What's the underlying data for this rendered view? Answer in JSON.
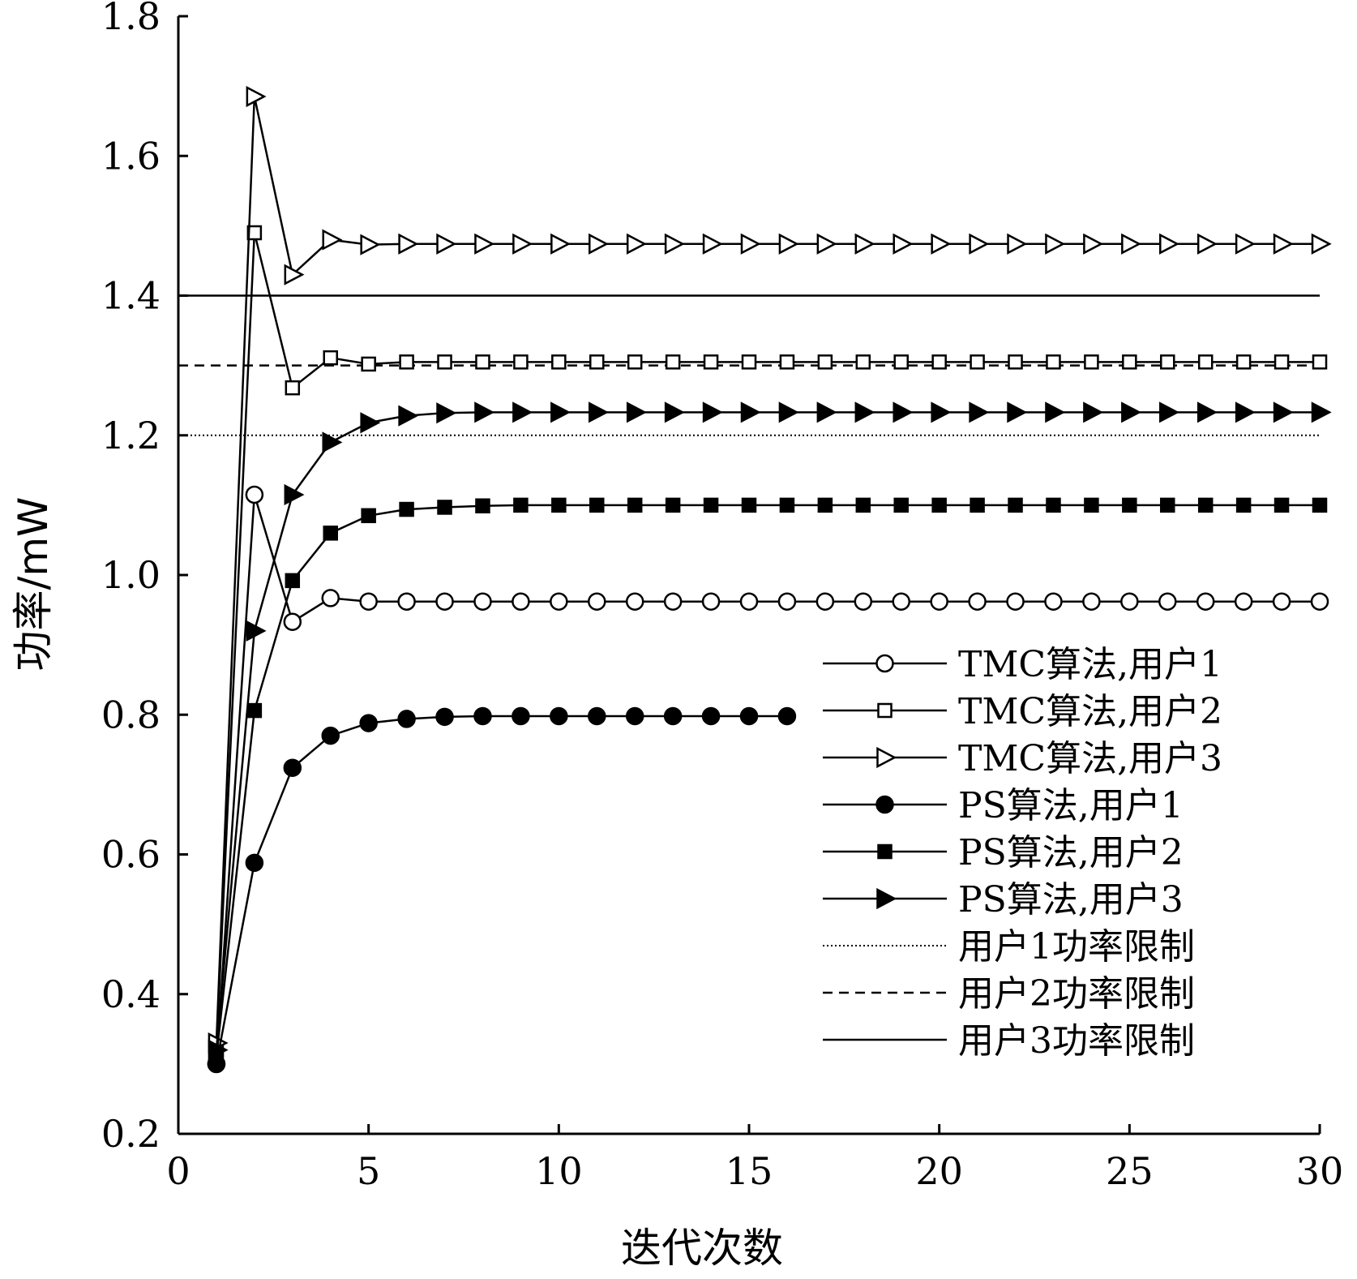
{
  "chart_data": {
    "type": "line",
    "title": "",
    "xlabel": "迭代次数",
    "ylabel": "功率/mW",
    "xlim": [
      0,
      30
    ],
    "ylim": [
      0.2,
      1.8
    ],
    "xticks": [
      0,
      5,
      10,
      15,
      20,
      25,
      30
    ],
    "xtick_labels": [
      "0",
      "5",
      "10",
      "15",
      "20",
      "25",
      "30"
    ],
    "yticks": [
      0.2,
      0.4,
      0.6,
      0.8,
      1.0,
      1.2,
      1.4,
      1.6,
      1.8
    ],
    "ytick_labels": [
      "0.2",
      "0.4",
      "0.6",
      "0.8",
      "1.0",
      "1.2",
      "1.4",
      "1.6",
      "1.8"
    ],
    "grid": false,
    "legend_position": "bottom-right",
    "series": [
      {
        "name": "TMC算法,用户1",
        "marker": "circle-open",
        "line": "solid",
        "x": [
          1,
          2,
          3,
          4,
          5,
          6,
          7,
          8,
          9,
          10,
          11,
          12,
          13,
          14,
          15,
          16,
          17,
          18,
          19,
          20,
          21,
          22,
          23,
          24,
          25,
          26,
          27,
          28,
          29,
          30
        ],
        "y": [
          0.3,
          1.115,
          0.933,
          0.967,
          0.962,
          0.962,
          0.962,
          0.962,
          0.962,
          0.962,
          0.962,
          0.962,
          0.962,
          0.962,
          0.962,
          0.962,
          0.962,
          0.962,
          0.962,
          0.962,
          0.962,
          0.962,
          0.962,
          0.962,
          0.962,
          0.962,
          0.962,
          0.962,
          0.962,
          0.962
        ]
      },
      {
        "name": "TMC算法,用户2",
        "marker": "square-open",
        "line": "solid",
        "x": [
          1,
          2,
          3,
          4,
          5,
          6,
          7,
          8,
          9,
          10,
          11,
          12,
          13,
          14,
          15,
          16,
          17,
          18,
          19,
          20,
          21,
          22,
          23,
          24,
          25,
          26,
          27,
          28,
          29,
          30
        ],
        "y": [
          0.32,
          1.49,
          1.268,
          1.311,
          1.302,
          1.305,
          1.305,
          1.305,
          1.305,
          1.305,
          1.305,
          1.305,
          1.305,
          1.305,
          1.305,
          1.305,
          1.305,
          1.305,
          1.305,
          1.305,
          1.305,
          1.305,
          1.305,
          1.305,
          1.305,
          1.305,
          1.305,
          1.305,
          1.305,
          1.305
        ]
      },
      {
        "name": "TMC算法,用户3",
        "marker": "triangle-right-open",
        "line": "solid",
        "x": [
          1,
          2,
          3,
          4,
          5,
          6,
          7,
          8,
          9,
          10,
          11,
          12,
          13,
          14,
          15,
          16,
          17,
          18,
          19,
          20,
          21,
          22,
          23,
          24,
          25,
          26,
          27,
          28,
          29,
          30
        ],
        "y": [
          0.33,
          1.685,
          1.43,
          1.48,
          1.473,
          1.474,
          1.474,
          1.474,
          1.474,
          1.474,
          1.474,
          1.474,
          1.474,
          1.474,
          1.474,
          1.474,
          1.474,
          1.474,
          1.474,
          1.474,
          1.474,
          1.474,
          1.474,
          1.474,
          1.474,
          1.474,
          1.474,
          1.474,
          1.474,
          1.474
        ]
      },
      {
        "name": "PS算法,用户1",
        "marker": "circle-filled",
        "line": "solid",
        "x": [
          1,
          2,
          3,
          4,
          5,
          6,
          7,
          8,
          9,
          10,
          11,
          12,
          13,
          14,
          15,
          16
        ],
        "y": [
          0.3,
          0.588,
          0.724,
          0.77,
          0.788,
          0.794,
          0.797,
          0.798,
          0.798,
          0.798,
          0.798,
          0.798,
          0.798,
          0.798,
          0.798,
          0.798
        ]
      },
      {
        "name": "PS算法,用户2",
        "marker": "square-filled",
        "line": "solid",
        "x": [
          1,
          2,
          3,
          4,
          5,
          6,
          7,
          8,
          9,
          10,
          11,
          12,
          13,
          14,
          15,
          16,
          17,
          18,
          19,
          20,
          21,
          22,
          23,
          24,
          25,
          26,
          27,
          28,
          29,
          30
        ],
        "y": [
          0.31,
          0.806,
          0.992,
          1.06,
          1.085,
          1.094,
          1.097,
          1.099,
          1.1,
          1.1,
          1.1,
          1.1,
          1.1,
          1.1,
          1.1,
          1.1,
          1.1,
          1.1,
          1.1,
          1.1,
          1.1,
          1.1,
          1.1,
          1.1,
          1.1,
          1.1,
          1.1,
          1.1,
          1.1,
          1.1
        ]
      },
      {
        "name": "PS算法,用户3",
        "marker": "triangle-right-filled",
        "line": "solid",
        "x": [
          1,
          2,
          3,
          4,
          5,
          6,
          7,
          8,
          9,
          10,
          11,
          12,
          13,
          14,
          15,
          16,
          17,
          18,
          19,
          20,
          21,
          22,
          23,
          24,
          25,
          26,
          27,
          28,
          29,
          30
        ],
        "y": [
          0.32,
          0.92,
          1.115,
          1.19,
          1.218,
          1.228,
          1.232,
          1.233,
          1.233,
          1.233,
          1.233,
          1.233,
          1.233,
          1.233,
          1.233,
          1.233,
          1.233,
          1.233,
          1.233,
          1.233,
          1.233,
          1.233,
          1.233,
          1.233,
          1.233,
          1.233,
          1.233,
          1.233,
          1.233,
          1.233
        ]
      }
    ],
    "reference_lines": [
      {
        "name": "用户1功率限制",
        "y": 1.2,
        "style": "dotted"
      },
      {
        "name": "用户2功率限制",
        "y": 1.3,
        "style": "dashed"
      },
      {
        "name": "用户3功率限制",
        "y": 1.4,
        "style": "solid"
      }
    ]
  }
}
